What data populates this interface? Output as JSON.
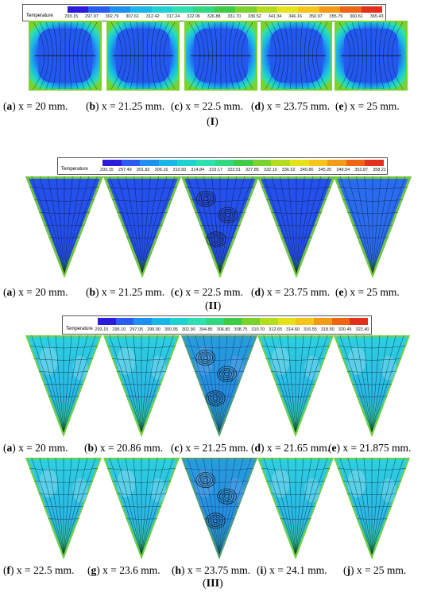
{
  "legend_title": "Temperature",
  "colorbar_colors": [
    "#2b1cd9",
    "#2a5cf0",
    "#1e90f0",
    "#1ab6e8",
    "#1ed2d2",
    "#2ee0b0",
    "#30d880",
    "#3ccc46",
    "#7ad22c",
    "#b6dc1e",
    "#e6e21a",
    "#f6c41a",
    "#f39a18",
    "#ee6614",
    "#e2301a"
  ],
  "groups": [
    {
      "label_letter": "I",
      "legend_ticks": [
        "293.15",
        "297.97",
        "302.79",
        "307.61",
        "312.42",
        "317.24",
        "322.06",
        "326.88",
        "331.70",
        "336.52",
        "341.34",
        "346.16",
        "350.97",
        "355.79",
        "360.61",
        "365.43"
      ],
      "panels": [
        {
          "letter": "a",
          "text": " x = 20 mm."
        },
        {
          "letter": "b",
          "text": " x = 21.25 mm."
        },
        {
          "letter": "c",
          "text": " x = 22.5 mm."
        },
        {
          "letter": "d",
          "text": " x = 23.75 mm."
        },
        {
          "letter": "e",
          "text": " x = 25 mm."
        }
      ]
    },
    {
      "label_letter": "II",
      "legend_ticks": [
        "293.15",
        "297.49",
        "301.82",
        "306.16",
        "310.50",
        "314.84",
        "319.17",
        "323.51",
        "327.85",
        "332.19",
        "336.52",
        "340.86",
        "345.20",
        "349.54",
        "353.87",
        "358.21"
      ],
      "panels": [
        {
          "letter": "a",
          "text": " x = 20 mm."
        },
        {
          "letter": "b",
          "text": " x = 21.25 mm."
        },
        {
          "letter": "c",
          "text": " x = 22.5 mm."
        },
        {
          "letter": "d",
          "text": " x = 23.75 mm."
        },
        {
          "letter": "e",
          "text": " x = 25 mm."
        }
      ]
    },
    {
      "label_letter": "III",
      "legend_ticks": [
        "293.15",
        "295.10",
        "297.05",
        "299.00",
        "300.95",
        "302.90",
        "304.85",
        "306.80",
        "308.75",
        "310.70",
        "312.65",
        "314.60",
        "316.55",
        "318.50",
        "320.45",
        "322.40"
      ],
      "panels": [
        {
          "letter": "a",
          "text": " x = 20 mm."
        },
        {
          "letter": "b",
          "text": " x = 20.86 mm."
        },
        {
          "letter": "c",
          "text": " x = 21.25 mm."
        },
        {
          "letter": "d",
          "text": " x = 21.65 mm."
        },
        {
          "letter": "e",
          "text": " x = 21.875 mm."
        },
        {
          "letter": "f",
          "text": " x = 22.5 mm."
        },
        {
          "letter": "g",
          "text": " x = 23.6 mm."
        },
        {
          "letter": "h",
          "text": " x = 23.75 mm."
        },
        {
          "letter": "i",
          "text": " x = 24.1 mm."
        },
        {
          "letter": "j",
          "text": " x = 25 mm."
        }
      ]
    }
  ]
}
